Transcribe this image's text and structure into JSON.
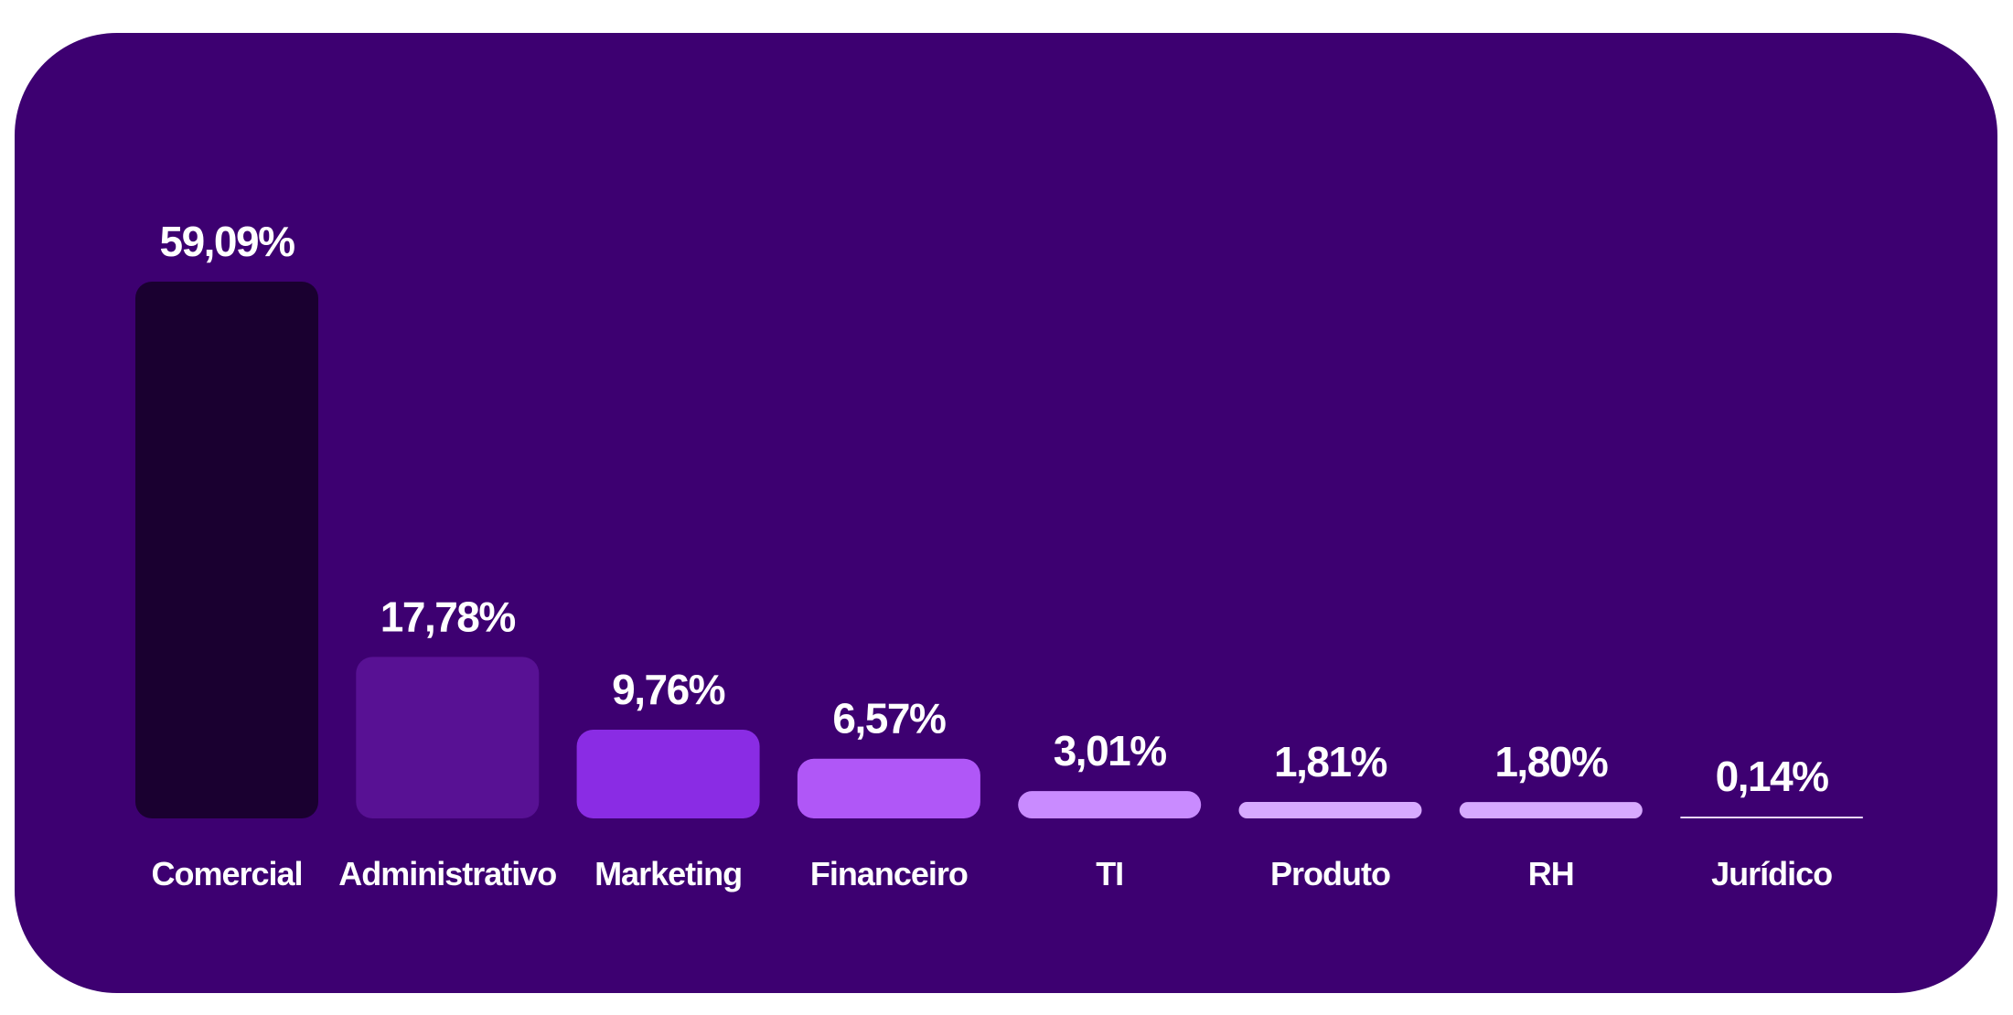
{
  "chart_data": {
    "type": "bar",
    "categories": [
      "Comercial",
      "Administrativo",
      "Marketing",
      "Financeiro",
      "TI",
      "Produto",
      "RH",
      "Jurídico"
    ],
    "values": [
      59.09,
      17.78,
      9.76,
      6.57,
      3.01,
      1.81,
      1.8,
      0.14
    ],
    "value_labels": [
      "59,09%",
      "17,78%",
      "9,76%",
      "6,57%",
      "3,01%",
      "1,81%",
      "1,80%",
      "0,14%"
    ],
    "title": "",
    "xlabel": "",
    "ylabel": "",
    "ylim": [
      0,
      59.09
    ],
    "grid": false,
    "legend": "none",
    "bar_colors": [
      "#1a0030",
      "#581194",
      "#8a2ce4",
      "#b057f7",
      "#c98bff",
      "#d7aaff",
      "#d7aaff",
      "#e8d6ff"
    ]
  },
  "colors": {
    "background": "#3d0071",
    "text": "#ffffff"
  }
}
